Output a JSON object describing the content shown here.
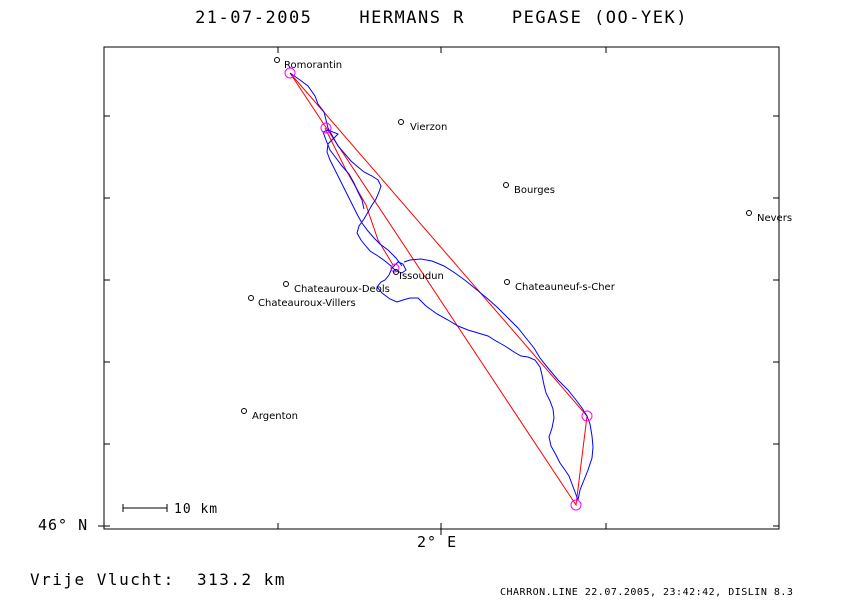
{
  "title": "21-07-2005    HERMANS R    PEGASE (OO-YEK)",
  "axes": {
    "lat_label": "46° N",
    "lon_label": "2° E"
  },
  "scale_label": "10 km",
  "distance_text": "Vrije Vlucht:  313.2 km",
  "footer_text": "CHARRON.LINE 22.07.2005, 23:42:42, DISLIN 8.3",
  "colors": {
    "track": "#0000ff",
    "task": "#ff0000",
    "turnpoint": "#ff00ff",
    "frame": "#000000"
  },
  "cities": [
    {
      "name": "Romorantin"
    },
    {
      "name": "Vierzon"
    },
    {
      "name": "Bourges"
    },
    {
      "name": "Nevers"
    },
    {
      "name": "Chateauroux-Deols"
    },
    {
      "name": "Chateauroux-Villers"
    },
    {
      "name": "Issoudun"
    },
    {
      "name": "Chateauneuf-s-Cher"
    },
    {
      "name": "Argenton"
    }
  ]
}
